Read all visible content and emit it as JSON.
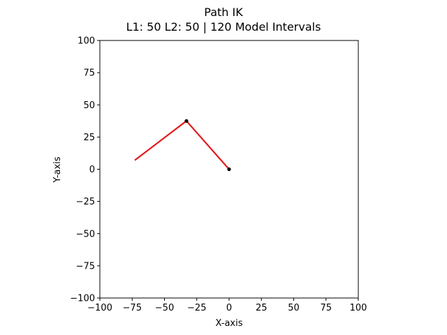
{
  "chart_data": {
    "type": "line",
    "title": "Path IK",
    "subtitle": "L1: 50 L2: 50  | 120 Model Intervals",
    "xlabel": "X-axis",
    "ylabel": "Y-axis",
    "xlim": [
      -100,
      100
    ],
    "ylim": [
      -100,
      100
    ],
    "xticks": [
      -100,
      -75,
      -50,
      -25,
      0,
      25,
      50,
      75,
      100
    ],
    "yticks": [
      -100,
      -75,
      -50,
      -25,
      0,
      25,
      50,
      75,
      100
    ],
    "xtick_labels": [
      "−100",
      "−75",
      "−50",
      "−25",
      "0",
      "25",
      "50",
      "75",
      "100"
    ],
    "ytick_labels": [
      "−100",
      "−75",
      "−50",
      "−25",
      "0",
      "25",
      "50",
      "75",
      "100"
    ],
    "grid": false,
    "links": [
      {
        "from": [
          0,
          0
        ],
        "to": [
          -33,
          37.5
        ]
      },
      {
        "from": [
          -33,
          37.5
        ],
        "to": [
          -73,
          7
        ]
      }
    ],
    "joints": [
      {
        "x": 0,
        "y": 0
      },
      {
        "x": -33,
        "y": 37.5
      }
    ],
    "colors": {
      "link": "#e41a1c",
      "joint": "#000000",
      "axes": "#000000"
    }
  }
}
